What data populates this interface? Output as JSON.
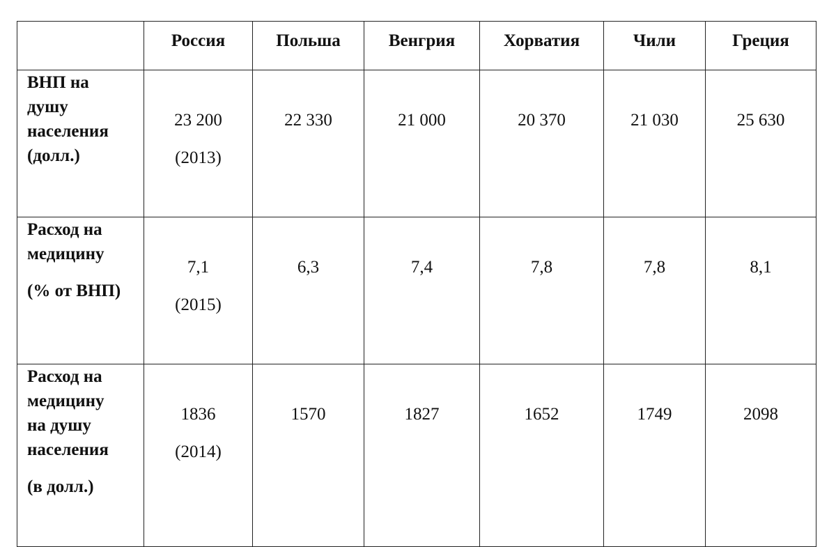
{
  "table": {
    "header": [
      "Россия",
      "Польша",
      "Венгрия",
      "Хорватия",
      "Чили",
      "Греция"
    ],
    "rows": [
      {
        "label": [
          "ВНП на",
          "душу",
          "населения",
          "(долл.)"
        ],
        "cells": [
          [
            "23 200",
            "(2013)"
          ],
          [
            "22 330"
          ],
          [
            "21 000"
          ],
          [
            "20 370"
          ],
          [
            "21 030"
          ],
          [
            "25 630"
          ]
        ]
      },
      {
        "label": [
          "Расход на",
          "медицину",
          "(% от ВНП)"
        ],
        "cells": [
          [
            "7,1",
            "(2015)"
          ],
          [
            "6,3"
          ],
          [
            "7,4"
          ],
          [
            "7,8"
          ],
          [
            "7,8"
          ],
          [
            "8,1"
          ]
        ]
      },
      {
        "label": [
          "Расход на",
          "медицину",
          "на душу",
          "населения",
          "(в долл.)"
        ],
        "cells": [
          [
            "1836",
            "(2014)"
          ],
          [
            "1570"
          ],
          [
            "1827"
          ],
          [
            "1652"
          ],
          [
            "1749"
          ],
          [
            "2098"
          ]
        ]
      }
    ]
  }
}
